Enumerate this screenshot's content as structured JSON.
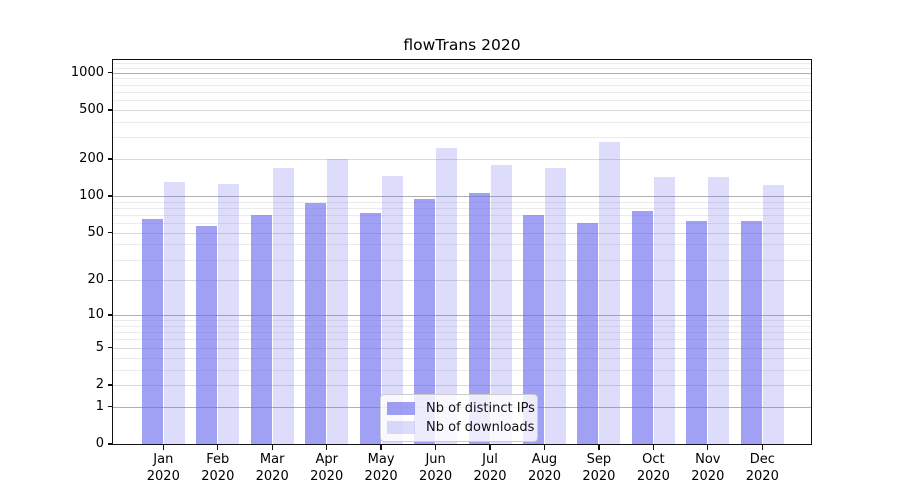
{
  "figure": {
    "title": "flowTrans 2020",
    "background_color": "#ffffff",
    "spine_color": "#111111",
    "grid_major_color": "#b0b0b0",
    "grid_mid_color": "#d9d9d9",
    "grid_minor_color": "#ebebeb"
  },
  "chart_data": {
    "type": "bar",
    "title": "flowTrans 2020",
    "categories": [
      "Jan",
      "Feb",
      "Mar",
      "Apr",
      "May",
      "Jun",
      "Jul",
      "Aug",
      "Sep",
      "Oct",
      "Nov",
      "Dec"
    ],
    "category_year": "2020",
    "series": [
      {
        "name": "Nb of distinct IPs",
        "color": "rgba(102,102,238,0.62)",
        "color_solid_hex": "#a0a0f4",
        "values": [
          65,
          57,
          70,
          88,
          72,
          94,
          106,
          70,
          60,
          75,
          62,
          62
        ]
      },
      {
        "name": "Nb of downloads",
        "color": "rgba(102,102,238,0.22)",
        "color_solid_hex": "#dddcfb",
        "values": [
          131,
          125,
          170,
          202,
          146,
          248,
          180,
          170,
          276,
          142,
          142,
          123
        ]
      }
    ],
    "xlabel": "",
    "ylabel": "",
    "yscale": "symlog",
    "yticks": [
      0,
      1,
      2,
      5,
      10,
      20,
      50,
      100,
      200,
      500,
      1000
    ],
    "ylim": [
      0,
      1268
    ],
    "grid": "on",
    "legend_position": "lower center inside"
  }
}
